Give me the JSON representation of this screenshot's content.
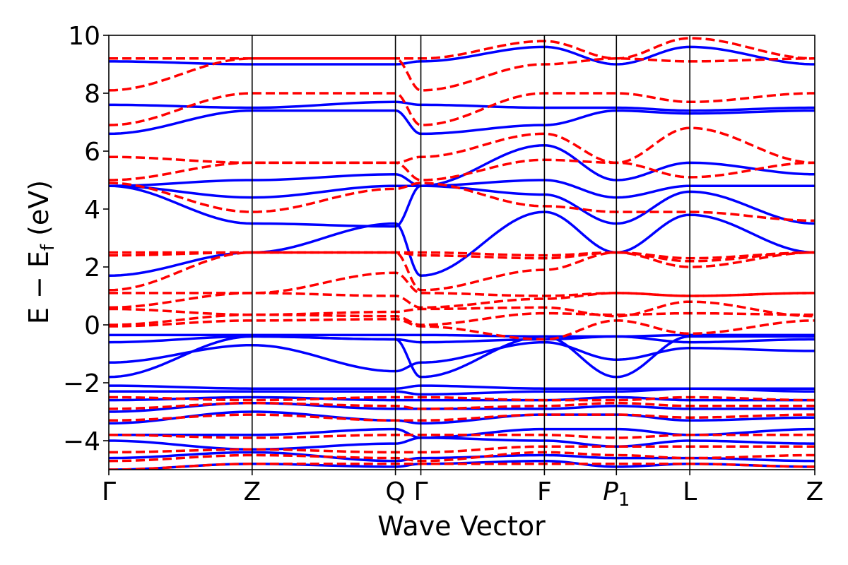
{
  "chart_data": {
    "type": "line",
    "xlabel": "Wave Vector",
    "ylabel_main": "E − E",
    "ylabel_sub": "f",
    "ylabel_unit": " (eV)",
    "ylim": [
      -5,
      10
    ],
    "yticks": [
      -4,
      -2,
      0,
      2,
      4,
      6,
      8,
      10
    ],
    "ytick_labels": [
      "−4",
      "−2",
      "0",
      "2",
      "4",
      "6",
      "8",
      "10"
    ],
    "xlim": [
      0,
      1
    ],
    "kpoints": [
      {
        "label": "Γ",
        "sub": "",
        "italic": false,
        "x": 0.0
      },
      {
        "label": "Z",
        "sub": "",
        "italic": false,
        "x": 0.203
      },
      {
        "label": "Q",
        "sub": "",
        "italic": false,
        "x": 0.406
      },
      {
        "label": "Γ",
        "sub": "",
        "italic": false,
        "x": 0.442
      },
      {
        "label": "F",
        "sub": "",
        "italic": false,
        "x": 0.617
      },
      {
        "label": "P",
        "sub": "1",
        "italic": true,
        "x": 0.719
      },
      {
        "label": "L",
        "sub": "",
        "italic": false,
        "x": 0.823
      },
      {
        "label": "Z",
        "sub": "",
        "italic": false,
        "x": 1.0
      }
    ],
    "grid": false,
    "legend": "none",
    "colors": {
      "spin_up": "#0000ff",
      "spin_down": "#ff0000"
    },
    "series": [
      {
        "style": "solid",
        "color": "#0000ff",
        "bands": [
          [
            -5.0,
            -4.8,
            -4.9,
            -4.8,
            -4.7,
            -4.9,
            -4.8,
            -4.9
          ],
          [
            -4.6,
            -4.4,
            -4.7,
            -4.6,
            -4.5,
            -4.6,
            -4.6,
            -4.7
          ],
          [
            -4.0,
            -4.3,
            -4.1,
            -3.9,
            -4.0,
            -4.2,
            -4.0,
            -4.1
          ],
          [
            -3.8,
            -3.8,
            -3.6,
            -3.9,
            -3.6,
            -3.6,
            -3.8,
            -3.6
          ],
          [
            -3.4,
            -3.0,
            -3.3,
            -3.4,
            -3.1,
            -3.1,
            -3.3,
            -3.2
          ],
          [
            -3.0,
            -2.7,
            -2.9,
            -2.9,
            -2.9,
            -2.8,
            -2.9,
            -2.9
          ],
          [
            -2.6,
            -2.5,
            -2.6,
            -2.6,
            -2.6,
            -2.5,
            -2.6,
            -2.6
          ],
          [
            -2.3,
            -2.3,
            -2.3,
            -2.4,
            -2.3,
            -2.3,
            -2.2,
            -2.3
          ],
          [
            -2.1,
            -2.2,
            -2.2,
            -2.1,
            -2.2,
            -2.2,
            -2.2,
            -2.2
          ],
          [
            -1.8,
            -0.4,
            -0.5,
            -1.8,
            -0.4,
            -1.8,
            -0.4,
            -0.4
          ],
          [
            -1.3,
            -0.7,
            -1.6,
            -1.3,
            -0.6,
            -1.2,
            -0.8,
            -0.9
          ],
          [
            -0.6,
            -0.4,
            -0.5,
            -0.6,
            -0.5,
            -0.4,
            -0.6,
            -0.5
          ],
          [
            -0.35,
            -0.35,
            -0.35,
            -0.35,
            -0.4,
            -0.4,
            -0.35,
            -0.35
          ],
          [
            1.7,
            2.5,
            3.5,
            1.7,
            3.9,
            2.5,
            3.8,
            2.5
          ],
          [
            4.8,
            3.5,
            3.4,
            4.8,
            4.5,
            3.5,
            4.6,
            3.5
          ],
          [
            4.8,
            4.4,
            4.8,
            4.8,
            5.0,
            4.4,
            4.8,
            4.8
          ],
          [
            4.8,
            5.0,
            5.2,
            4.8,
            6.2,
            5.0,
            5.6,
            5.2
          ],
          [
            6.6,
            7.4,
            7.4,
            6.6,
            6.9,
            7.4,
            7.3,
            7.4
          ],
          [
            7.6,
            7.5,
            7.7,
            7.6,
            7.5,
            7.5,
            7.4,
            7.5
          ],
          [
            9.1,
            9.0,
            9.0,
            9.1,
            9.6,
            9.0,
            9.6,
            9.0
          ]
        ]
      },
      {
        "style": "dashed",
        "color": "#ff0000",
        "bands": [
          [
            -5.0,
            -4.8,
            -4.8,
            -4.8,
            -4.8,
            -4.8,
            -4.8,
            -4.9
          ],
          [
            -4.7,
            -4.5,
            -4.6,
            -4.7,
            -4.4,
            -4.5,
            -4.6,
            -4.5
          ],
          [
            -4.4,
            -4.3,
            -4.4,
            -4.4,
            -4.2,
            -4.2,
            -4.2,
            -4.2
          ],
          [
            -3.8,
            -3.9,
            -3.8,
            -3.8,
            -3.8,
            -3.9,
            -3.8,
            -3.8
          ],
          [
            -3.3,
            -3.1,
            -3.3,
            -3.3,
            -3.1,
            -3.1,
            -3.2,
            -3.1
          ],
          [
            -2.9,
            -2.7,
            -2.8,
            -2.9,
            -2.8,
            -2.7,
            -2.8,
            -2.8
          ],
          [
            -2.5,
            -2.6,
            -2.5,
            -2.5,
            -2.6,
            -2.6,
            -2.5,
            -2.6
          ],
          [
            -0.05,
            0.15,
            0.2,
            -0.05,
            -0.5,
            0.15,
            -0.3,
            0.15
          ],
          [
            0.0,
            0.35,
            0.3,
            0.0,
            0.4,
            0.35,
            0.4,
            0.35
          ],
          [
            0.55,
            0.35,
            0.45,
            0.55,
            0.6,
            0.3,
            0.8,
            0.3
          ],
          [
            0.6,
            1.1,
            1.0,
            0.6,
            0.9,
            1.1,
            1.0,
            1.1
          ],
          [
            1.1,
            1.1,
            1.8,
            1.1,
            1.0,
            1.1,
            1.0,
            1.1
          ],
          [
            1.2,
            2.5,
            2.5,
            1.2,
            1.9,
            2.5,
            2.0,
            2.5
          ],
          [
            2.4,
            2.5,
            2.5,
            2.4,
            2.3,
            2.5,
            2.2,
            2.5
          ],
          [
            2.5,
            2.5,
            2.5,
            2.5,
            2.4,
            2.5,
            2.3,
            2.5
          ],
          [
            4.9,
            3.9,
            4.7,
            4.9,
            4.1,
            3.9,
            3.9,
            3.6
          ],
          [
            5.0,
            5.6,
            5.6,
            5.0,
            5.7,
            5.6,
            5.1,
            5.6
          ],
          [
            5.8,
            5.6,
            5.6,
            5.8,
            6.6,
            5.6,
            6.8,
            5.6
          ],
          [
            6.9,
            8.0,
            8.0,
            6.9,
            8.0,
            8.0,
            7.7,
            8.0
          ],
          [
            8.1,
            9.2,
            9.2,
            8.1,
            9.0,
            9.2,
            9.1,
            9.2
          ],
          [
            9.2,
            9.2,
            9.2,
            9.2,
            9.8,
            9.2,
            9.9,
            9.2
          ]
        ]
      }
    ]
  }
}
